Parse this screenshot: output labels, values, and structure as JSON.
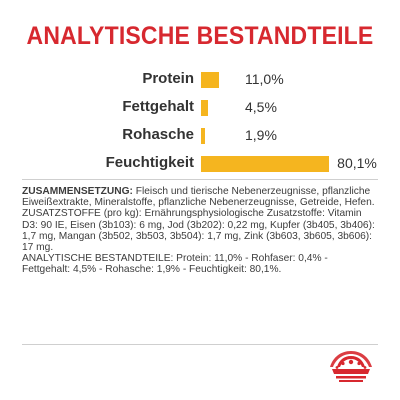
{
  "title": "ANALYTISCHE BESTANDTEILE",
  "chart_data": {
    "type": "bar",
    "categories": [
      "Protein",
      "Fettgehalt",
      "Rohasche",
      "Feuchtigkeit"
    ],
    "values": [
      11.0,
      4.5,
      1.9,
      80.1
    ],
    "value_labels": [
      "11,0%",
      "4,5%",
      "1,9%",
      "80,1%"
    ],
    "title": "ANALYTISCHE BESTANDTEILE",
    "xlabel": "",
    "ylabel": "",
    "ylim": [
      0,
      100
    ],
    "grid": false,
    "bar_color": "#f5b51f"
  },
  "composition": {
    "heading": "ZUSAMMENSETZUNG:",
    "text": "Fleisch und tierische Nebenerzeugnisse, pflanzliche Eiweißextrakte, Mineralstoffe, pflanzliche Nebenerzeugnisse, Getreide, Hefen.",
    "additives": "ZUSATZSTOFFE (pro kg): Ernährungsphysiologische Zusatzstoffe: Vitamin D3: 90 IE, Eisen (3b103): 6 mg, Jod (3b202): 0,22 mg, Kupfer (3b405, 3b406): 1,7 mg, Mangan (3b502, 3b503, 3b504): 1,7 mg, Zink (3b603, 3b605, 3b606): 17 mg.",
    "analytical": "ANALYTISCHE BESTANDTEILE: Protein: 11,0% - Rohfaser: 0,4% - Fettgehalt: 4,5% - Rohasche: 1,9% - Feuchtigkeit: 80,1%."
  },
  "colors": {
    "title": "#d7282f",
    "bar": "#f5b51f",
    "logo": "#d7282f"
  },
  "logo": {
    "icon": "royal-canin-crown-logo"
  }
}
